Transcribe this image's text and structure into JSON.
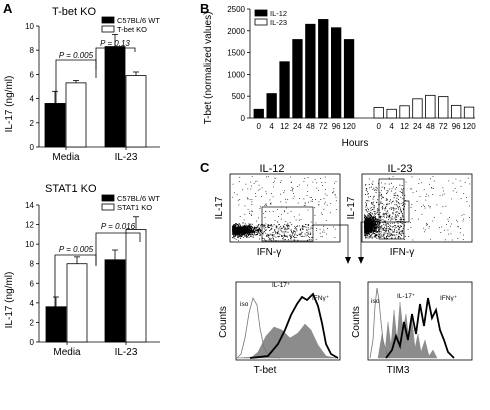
{
  "panels": {
    "A": "A",
    "B": "B",
    "C": "C"
  },
  "chart_data": [
    {
      "id": "A-top",
      "type": "bar",
      "title": "T-bet KO",
      "ylabel": "IL-17 (ng/ml)",
      "ylim": [
        0,
        10
      ],
      "yticks": [
        0,
        2,
        4,
        6,
        8,
        10
      ],
      "categories": [
        "Media",
        "IL-23"
      ],
      "series": [
        {
          "name": "C57BL/6 WT",
          "color": "#000000",
          "values": [
            3.6,
            8.3
          ],
          "errors": [
            1.0,
            1.0
          ]
        },
        {
          "name": "T-bet KO",
          "color": "#ffffff",
          "values": [
            5.3,
            5.9
          ],
          "errors": [
            0.2,
            0.3
          ]
        }
      ],
      "annotations": [
        "P = 0.005",
        "P = 0.13"
      ],
      "legend": "top-right"
    },
    {
      "id": "A-bottom",
      "type": "bar",
      "title": "STAT1 KO",
      "ylabel": "IL-17 (ng/ml)",
      "ylim": [
        0,
        14
      ],
      "yticks": [
        0,
        2,
        4,
        6,
        8,
        10,
        12,
        14
      ],
      "categories": [
        "Media",
        "IL-23"
      ],
      "series": [
        {
          "name": "C57BL/6 WT",
          "color": "#000000",
          "values": [
            3.6,
            8.4
          ],
          "errors": [
            1.0,
            1.0
          ]
        },
        {
          "name": "STAT1 KO",
          "color": "#ffffff",
          "values": [
            8.0,
            11.5
          ],
          "errors": [
            0.7,
            1.3
          ]
        }
      ],
      "annotations": [
        "P = 0.005",
        "P = 0.016"
      ],
      "legend": "top-right"
    },
    {
      "id": "B",
      "type": "bar",
      "ylabel": "T-bet (normalized values)",
      "xlabel": "Hours",
      "ylim": [
        0,
        2500
      ],
      "yticks": [
        0,
        500,
        1000,
        1500,
        2000,
        2500
      ],
      "series": [
        {
          "name": "IL-12",
          "color": "#000000",
          "x": [
            "0",
            "4",
            "12",
            "24",
            "48",
            "72",
            "96",
            "120"
          ],
          "values": [
            200,
            560,
            1290,
            1800,
            2150,
            2260,
            2070,
            1800
          ]
        },
        {
          "name": "IL-23",
          "color": "#ffffff",
          "x": [
            "0",
            "4",
            "12",
            "24",
            "48",
            "72",
            "96",
            "120"
          ],
          "values": [
            240,
            200,
            280,
            440,
            520,
            490,
            290,
            250
          ]
        }
      ],
      "legend": "top-left"
    },
    {
      "id": "C-dot-IL12",
      "type": "scatter",
      "title": "IL-12",
      "xlabel": "IFN-γ",
      "ylabel": "IL-17"
    },
    {
      "id": "C-dot-IL23",
      "type": "scatter",
      "title": "IL-23",
      "xlabel": "IFN-γ",
      "ylabel": "IL-17"
    },
    {
      "id": "C-hist-tbet",
      "type": "line",
      "xlabel": "T-bet",
      "ylabel": "Counts",
      "series_labels": [
        "iso",
        "IL-17⁺",
        "IFNγ⁺"
      ]
    },
    {
      "id": "C-hist-tim3",
      "type": "line",
      "xlabel": "TIM3",
      "ylabel": "Counts",
      "series_labels": [
        "iso",
        "IL-17⁺",
        "IFNγ⁺"
      ]
    }
  ]
}
